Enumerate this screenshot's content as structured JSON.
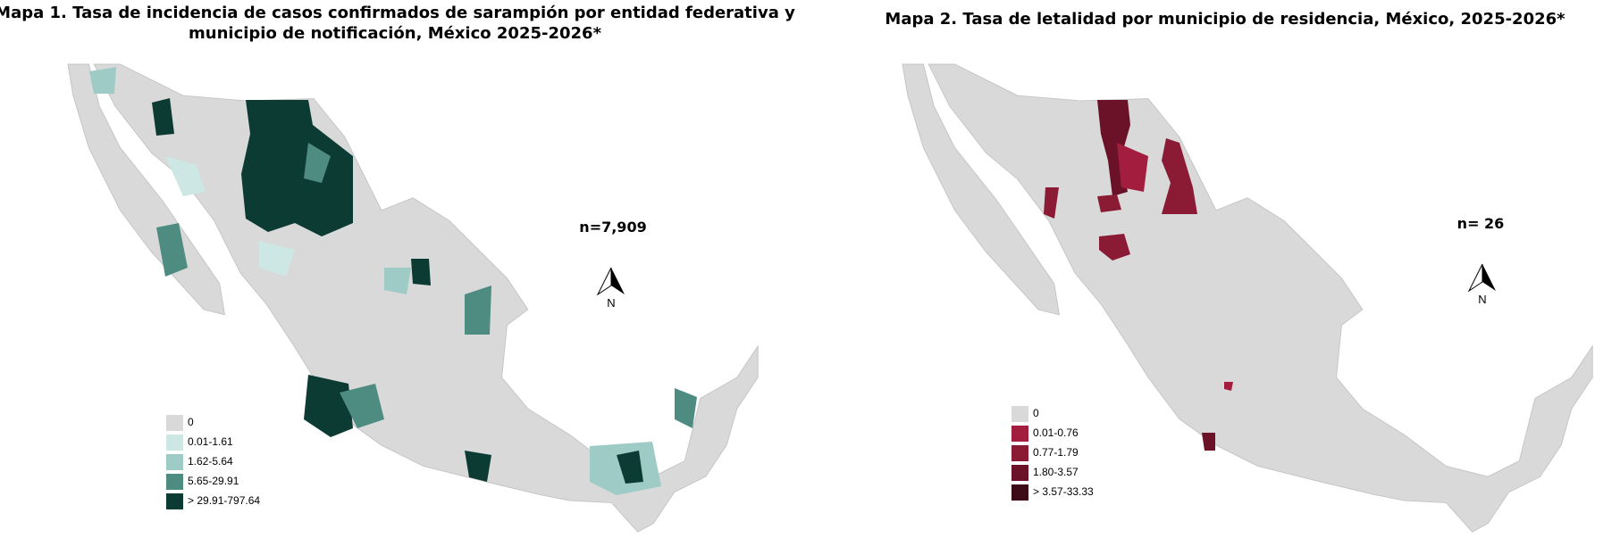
{
  "maps": [
    {
      "title_lines": [
        "Mapa 1. Tasa de incidencia de casos confirmados de sarampión por entidad federativa y",
        "municipio de  notificación, México 2025-2026*"
      ],
      "n_label": "n=7,909",
      "north_label": "N",
      "legend": [
        {
          "label": "0",
          "color": "#d9d9d9"
        },
        {
          "label": "0.01-1.61",
          "color": "#cde8e4"
        },
        {
          "label": "1.62-5.64",
          "color": "#9ecbc5"
        },
        {
          "label": "5.65-29.91",
          "color": "#4e8c82"
        },
        {
          "label": "> 29.91-797.64",
          "color": "#0b3b32"
        }
      ]
    },
    {
      "title_lines": [
        "Mapa 2. Tasa de letalidad por municipio de residencia, México, 2025-2026*"
      ],
      "n_label": "n= 26",
      "north_label": "N",
      "legend": [
        {
          "label": "0",
          "color": "#d9d9d9"
        },
        {
          "label": "0.01-0.76",
          "color": "#a31d3f"
        },
        {
          "label": "0.77-1.79",
          "color": "#8b1a35"
        },
        {
          "label": "1.80-3.57",
          "color": "#6b1228"
        },
        {
          "label": "> 3.57-33.33",
          "color": "#3d0a17"
        }
      ]
    }
  ]
}
